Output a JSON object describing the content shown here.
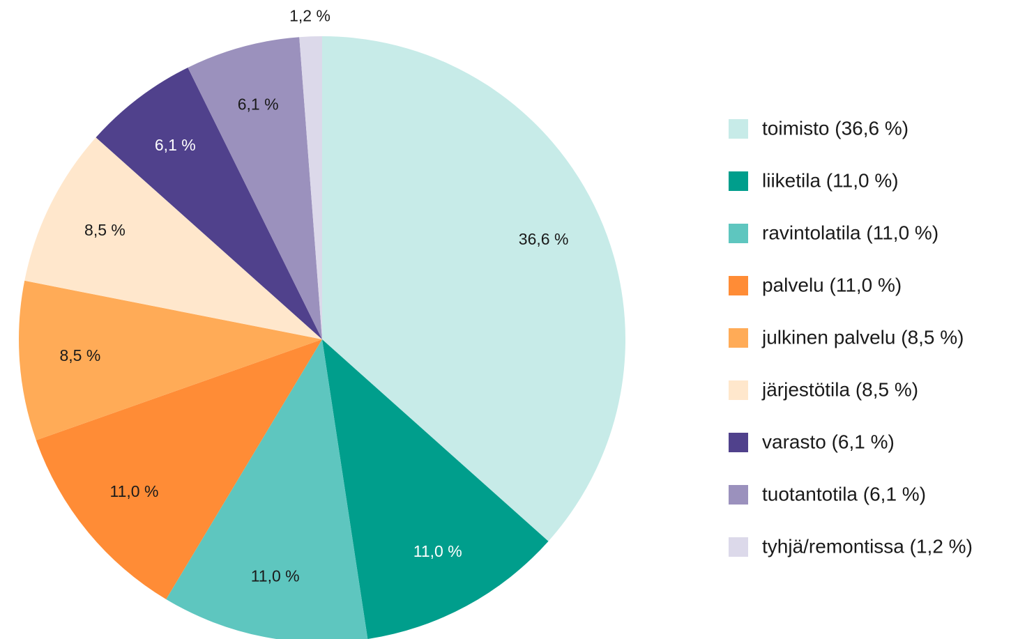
{
  "chart_data": {
    "type": "pie",
    "categories": [
      "toimisto (36,6 %)",
      "liiketila (11,0 %)",
      "ravintolatila (11,0 %)",
      "palvelu (11,0 %)",
      "julkinen palvelu (8,5 %)",
      "järjestötila (8,5 %)",
      "varasto (6,1 %)",
      "tuotantotila (6,1 %)",
      "tyhjä/remontissa (1,2 %)"
    ],
    "values": [
      36.6,
      11.0,
      11.0,
      11.0,
      8.5,
      8.5,
      6.1,
      6.1,
      1.2
    ],
    "value_labels": [
      "36,6 %",
      "11,0 %",
      "11,0 %",
      "11,0 %",
      "8,5 %",
      "8,5 %",
      "6,1 %",
      "6,1 %",
      "1,2 %"
    ],
    "colors": [
      "#c7ebe8",
      "#009e8c",
      "#5ec6bf",
      "#ff8c36",
      "#ffab57",
      "#ffe7cc",
      "#50418c",
      "#9b91bd",
      "#dcd9ea"
    ],
    "legend": "right"
  }
}
